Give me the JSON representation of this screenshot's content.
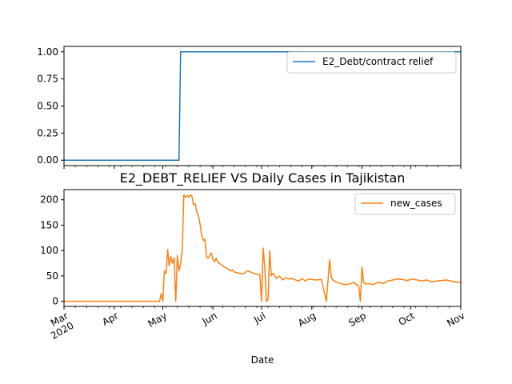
{
  "figure": {
    "title": "E2_DEBT_RELIEF VS Daily Cases in Tajikistan",
    "xlabel": "Date"
  },
  "colors": {
    "series_top": "#1f77b4",
    "series_bottom": "#ff7f0e",
    "axes": "#000000",
    "legend_border": "#cccccc"
  },
  "chart_data": [
    {
      "type": "line",
      "title": "",
      "xlabel": "",
      "ylabel": "",
      "xlim": [
        "2020-03-01",
        "2020-11-01"
      ],
      "ylim": [
        -0.05,
        1.05
      ],
      "yticks": [
        0.0,
        0.25,
        0.5,
        0.75,
        1.0
      ],
      "ytick_labels": [
        "0.00",
        "0.25",
        "0.50",
        "0.75",
        "1.00"
      ],
      "legend": {
        "position": "top-right",
        "entries": [
          "E2_Debt/contract relief"
        ]
      },
      "grid": false,
      "series": [
        {
          "name": "E2_Debt/contract relief",
          "x": [
            "2020-03-01",
            "2020-05-11",
            "2020-05-12",
            "2020-11-01"
          ],
          "y": [
            0,
            0,
            1,
            1
          ]
        }
      ]
    },
    {
      "type": "line",
      "title": "E2_DEBT_RELIEF VS Daily Cases in Tajikistan",
      "xlabel": "Date",
      "ylabel": "",
      "xlim": [
        "2020-03-01",
        "2020-11-01"
      ],
      "ylim": [
        -10,
        220
      ],
      "yticks": [
        0,
        50,
        100,
        150,
        200
      ],
      "ytick_labels": [
        "0",
        "50",
        "100",
        "150",
        "200"
      ],
      "xticks": [
        "2020-03-01",
        "2020-04-01",
        "2020-05-01",
        "2020-06-01",
        "2020-07-01",
        "2020-08-01",
        "2020-09-01",
        "2020-10-01",
        "2020-11-01"
      ],
      "xtick_labels": [
        "Mar\n2020",
        "Apr",
        "May",
        "Jun",
        "Jul",
        "Aug",
        "Sep",
        "Oct",
        "Nov"
      ],
      "legend": {
        "position": "top-right",
        "entries": [
          "new_cases"
        ]
      },
      "grid": false,
      "series": [
        {
          "name": "new_cases",
          "x": [
            "2020-03-01",
            "2020-04-29",
            "2020-04-30",
            "2020-05-01",
            "2020-05-02",
            "2020-05-03",
            "2020-05-04",
            "2020-05-05",
            "2020-05-06",
            "2020-05-07",
            "2020-05-08",
            "2020-05-09",
            "2020-05-10",
            "2020-05-11",
            "2020-05-12",
            "2020-05-13",
            "2020-05-14",
            "2020-05-15",
            "2020-05-16",
            "2020-05-17",
            "2020-05-18",
            "2020-05-19",
            "2020-05-20",
            "2020-05-21",
            "2020-05-22",
            "2020-05-23",
            "2020-05-24",
            "2020-05-25",
            "2020-05-26",
            "2020-05-27",
            "2020-05-28",
            "2020-05-29",
            "2020-05-30",
            "2020-05-31",
            "2020-06-01",
            "2020-06-02",
            "2020-06-03",
            "2020-06-04",
            "2020-06-05",
            "2020-06-06",
            "2020-06-07",
            "2020-06-08",
            "2020-06-09",
            "2020-06-10",
            "2020-06-11",
            "2020-06-12",
            "2020-06-13",
            "2020-06-14",
            "2020-06-15",
            "2020-06-16",
            "2020-06-18",
            "2020-06-20",
            "2020-06-22",
            "2020-06-24",
            "2020-06-26",
            "2020-06-28",
            "2020-06-30",
            "2020-07-01",
            "2020-07-02",
            "2020-07-03",
            "2020-07-04",
            "2020-07-05",
            "2020-07-06",
            "2020-07-07",
            "2020-07-08",
            "2020-07-09",
            "2020-07-10",
            "2020-07-12",
            "2020-07-14",
            "2020-07-16",
            "2020-07-18",
            "2020-07-20",
            "2020-07-22",
            "2020-07-24",
            "2020-07-26",
            "2020-07-28",
            "2020-07-30",
            "2020-08-01",
            "2020-08-04",
            "2020-08-07",
            "2020-08-10",
            "2020-08-12",
            "2020-08-13",
            "2020-08-14",
            "2020-08-15",
            "2020-08-16",
            "2020-08-18",
            "2020-08-21",
            "2020-08-24",
            "2020-08-27",
            "2020-08-30",
            "2020-08-31",
            "2020-09-01",
            "2020-09-02",
            "2020-09-03",
            "2020-09-05",
            "2020-09-08",
            "2020-09-11",
            "2020-09-14",
            "2020-09-17",
            "2020-09-20",
            "2020-09-23",
            "2020-09-26",
            "2020-09-29",
            "2020-10-02",
            "2020-10-05",
            "2020-10-08",
            "2020-10-11",
            "2020-10-14",
            "2020-10-17",
            "2020-10-20",
            "2020-10-23",
            "2020-10-26",
            "2020-10-29",
            "2020-11-01"
          ],
          "y": [
            0,
            0,
            15,
            0,
            60,
            55,
            102,
            70,
            88,
            75,
            85,
            0,
            90,
            60,
            75,
            100,
            210,
            205,
            208,
            205,
            210,
            207,
            190,
            192,
            175,
            170,
            152,
            130,
            120,
            122,
            88,
            85,
            90,
            95,
            82,
            78,
            85,
            76,
            75,
            72,
            70,
            68,
            66,
            64,
            62,
            60,
            62,
            58,
            57,
            56,
            55,
            54,
            60,
            58,
            55,
            54,
            52,
            0,
            105,
            65,
            0,
            3,
            100,
            50,
            55,
            52,
            45,
            50,
            42,
            46,
            44,
            45,
            42,
            40,
            45,
            40,
            44,
            43,
            42,
            43,
            0,
            82,
            48,
            42,
            40,
            38,
            36,
            33,
            34,
            37,
            30,
            0,
            67,
            38,
            34,
            35,
            33,
            38,
            35,
            40,
            42,
            44,
            43,
            41,
            44,
            42,
            40,
            42,
            38,
            40,
            41,
            42,
            40,
            38,
            37
          ]
        }
      ]
    }
  ]
}
